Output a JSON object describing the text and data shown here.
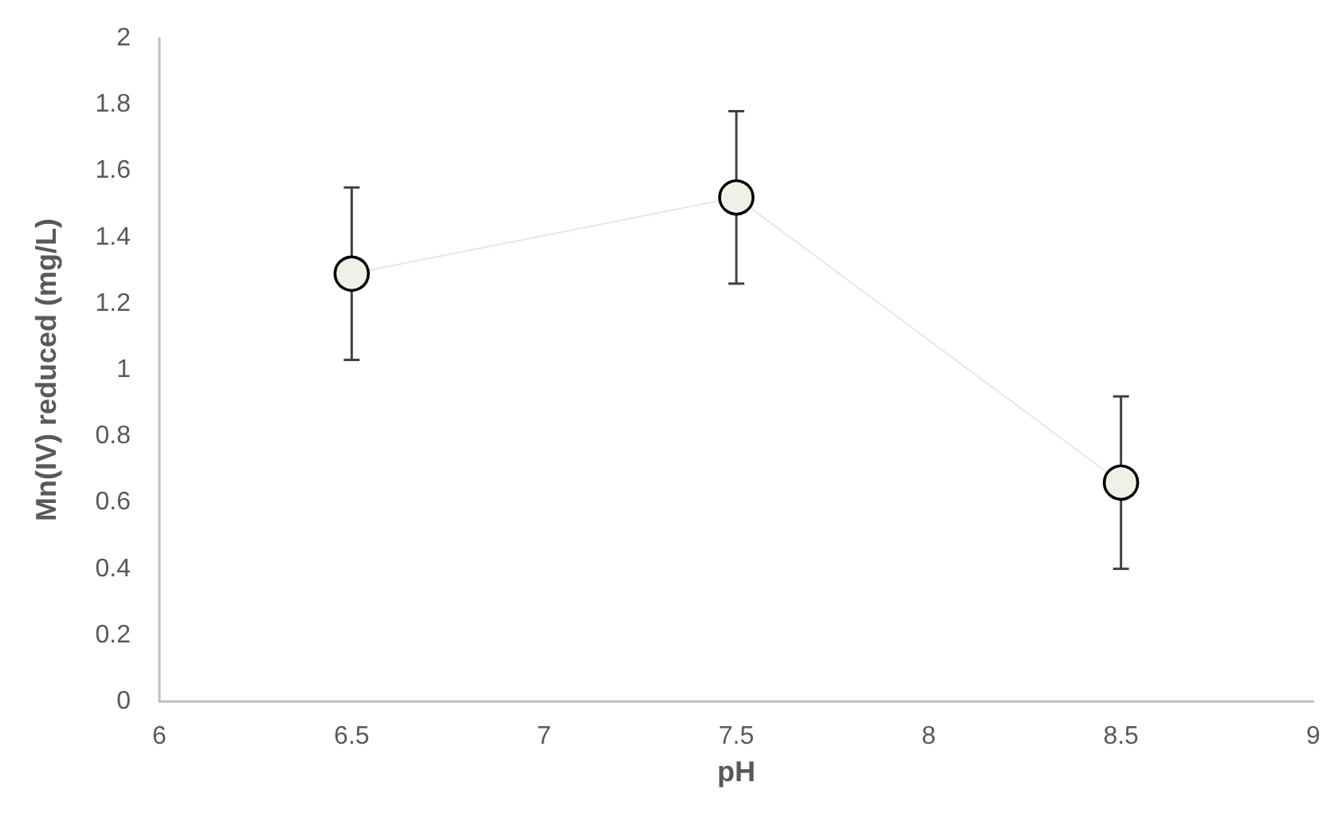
{
  "chart_data": {
    "type": "line",
    "xlabel": "pH",
    "ylabel": "Mn(IV) reduced (mg/L)",
    "x": [
      6.5,
      7.5,
      8.5
    ],
    "series": [
      {
        "color": "#f0f0e6",
        "values": [
          1.29,
          1.52,
          0.66
        ],
        "errors": [
          0.26,
          0.26,
          0.26
        ]
      }
    ],
    "xlim": [
      6,
      9
    ],
    "xticks": [
      6,
      6.5,
      7,
      7.5,
      8,
      8.5,
      9
    ],
    "ylim": [
      0,
      2
    ],
    "yticks": [
      0,
      0.2,
      0.4,
      0.6,
      0.8,
      1,
      1.2,
      1.4,
      1.6,
      1.8,
      2
    ],
    "grid": false,
    "marker": "circle",
    "line_style": "dotted"
  }
}
